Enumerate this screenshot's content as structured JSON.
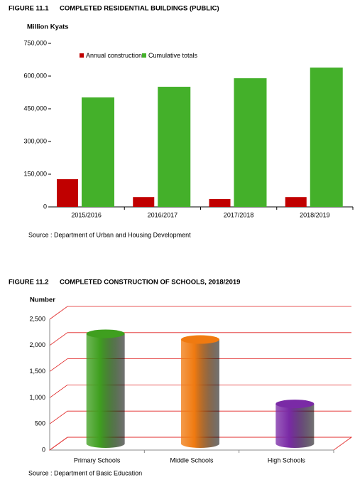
{
  "chart_data": [
    {
      "type": "bar",
      "figure": "FIGURE 11.1",
      "title": "COMPLETED RESIDENTIAL BUILDINGS (PUBLIC)",
      "y_label": "Million Kyats",
      "categories": [
        "2015/2016",
        "2016/2017",
        "2017/2018",
        "2018/2019"
      ],
      "series": [
        {
          "name": "Annual construction",
          "color": "#c00000",
          "values": [
            127000,
            45000,
            36000,
            45000
          ]
        },
        {
          "name": "Cumulative totals",
          "color": "#44b02a",
          "values": [
            502000,
            551000,
            590000,
            639000
          ]
        }
      ],
      "ylim": [
        0,
        750000
      ],
      "yticks": [
        0,
        {
          "value": 150000,
          "label": "150,000"
        },
        {
          "value": 300000,
          "label": "300,000"
        },
        {
          "value": 450000,
          "label": "450,000"
        },
        {
          "value": 600000,
          "label": "600,000"
        },
        {
          "value": 750000,
          "label": "750,000"
        }
      ],
      "source": "Source : Department of Urban and Housing Development"
    },
    {
      "type": "cylinder",
      "figure": "FIGURE 11.2",
      "title": "COMPLETED CONSTRUCTION OF SCHOOLS, 2018/2019",
      "y_label": "Number",
      "categories": [
        "Primary Schools",
        "Middle Schools",
        "High Schools"
      ],
      "values": [
        2100,
        1990,
        760
      ],
      "colors": [
        "#3f9f1f",
        "#f07a10",
        "#7a2aa6"
      ],
      "grid_color": "#e02020",
      "ylim": [
        0,
        2500
      ],
      "yticks": [
        0,
        500,
        {
          "value": 1000,
          "label": "1,000"
        },
        {
          "value": 1500,
          "label": "1,500"
        },
        {
          "value": 2000,
          "label": "2,000"
        },
        {
          "value": 2500,
          "label": "2,500"
        }
      ],
      "source": "Source : Department of Basic Education"
    }
  ]
}
